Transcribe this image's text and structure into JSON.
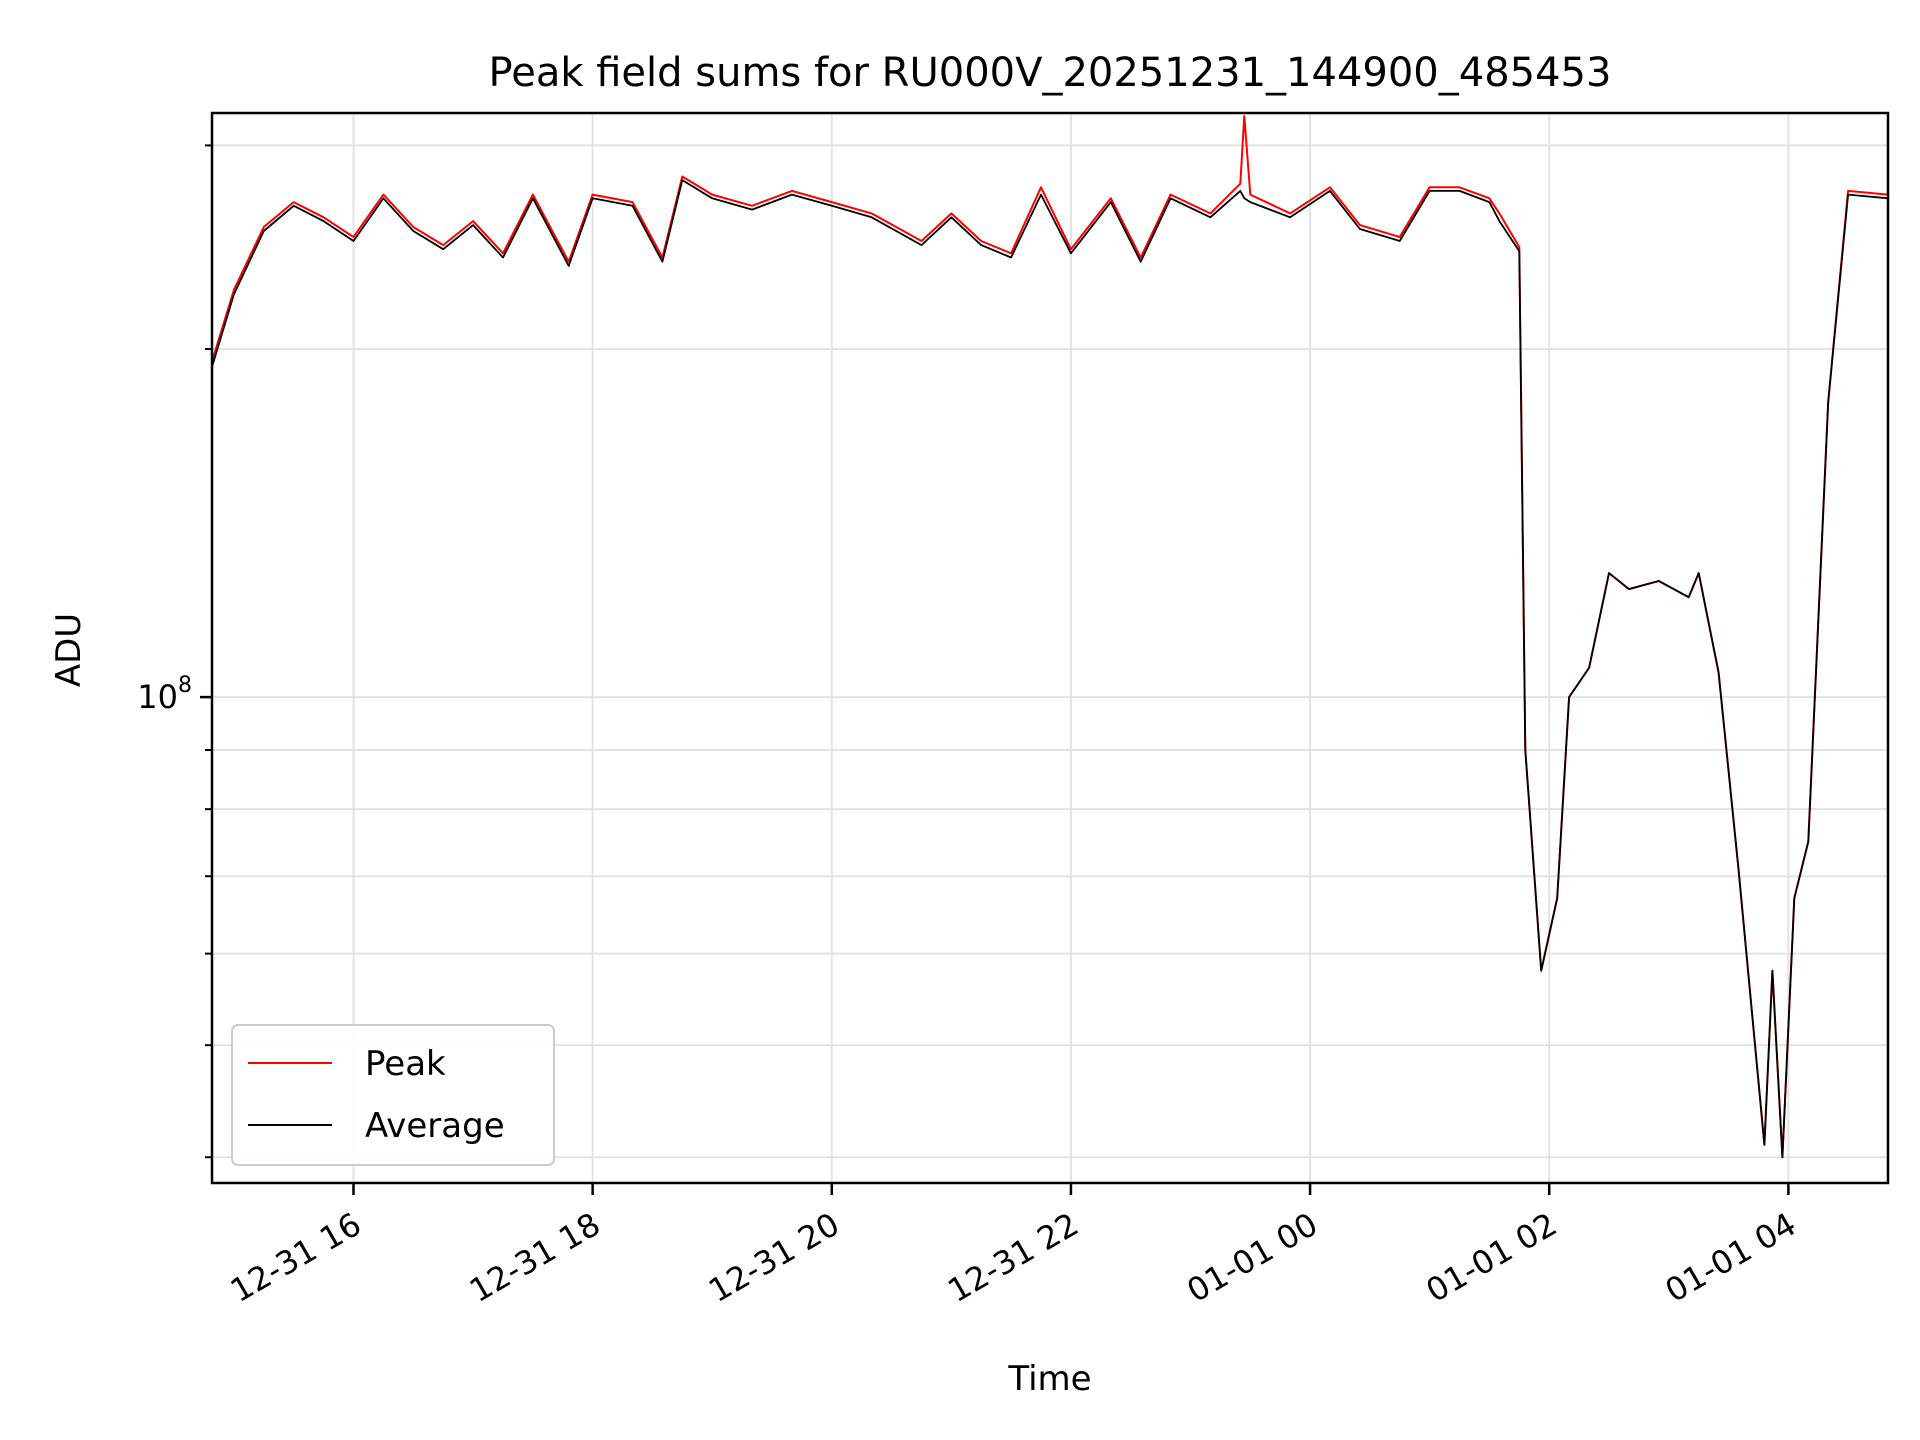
{
  "chart_data": {
    "type": "line",
    "title": "Peak field sums for RU000V_20251231_144900_485453",
    "xlabel": "Time",
    "ylabel": "ADU",
    "y_scale": "log",
    "ylim": [
      38000000,
      320000000
    ],
    "xlim": [
      "12-31 14:49",
      "01-01 04:50"
    ],
    "grid": true,
    "legend_position": "lower-left",
    "x_ticks": [
      {
        "t": "12-31 16:00",
        "label": "12-31 16"
      },
      {
        "t": "12-31 18:00",
        "label": "12-31 18"
      },
      {
        "t": "12-31 20:00",
        "label": "12-31 20"
      },
      {
        "t": "12-31 22:00",
        "label": "12-31 22"
      },
      {
        "t": "01-01 00:00",
        "label": "01-01 00"
      },
      {
        "t": "01-01 02:00",
        "label": "01-01 02"
      },
      {
        "t": "01-01 04:00",
        "label": "01-01 04"
      }
    ],
    "y_major_tick": {
      "value": 100000000,
      "base": "10",
      "exponent": "8"
    },
    "y_minor_ticks": [
      40000000,
      50000000,
      60000000,
      70000000,
      80000000,
      90000000,
      200000000,
      300000000
    ],
    "series": [
      {
        "name": "Peak",
        "color": "#ff0000",
        "points": [
          [
            "12-31 14:49",
            195000000
          ],
          [
            "12-31 15:00",
            225000000
          ],
          [
            "12-31 15:15",
            255000000
          ],
          [
            "12-31 15:30",
            268000000
          ],
          [
            "12-31 15:45",
            260000000
          ],
          [
            "12-31 16:00",
            250000000
          ],
          [
            "12-31 16:15",
            272000000
          ],
          [
            "12-31 16:30",
            255000000
          ],
          [
            "12-31 16:45",
            246000000
          ],
          [
            "12-31 17:00",
            258000000
          ],
          [
            "12-31 17:15",
            242000000
          ],
          [
            "12-31 17:30",
            272000000
          ],
          [
            "12-31 17:48",
            238000000
          ],
          [
            "12-31 18:00",
            272000000
          ],
          [
            "12-31 18:20",
            268000000
          ],
          [
            "12-31 18:35",
            240000000
          ],
          [
            "12-31 18:45",
            282000000
          ],
          [
            "12-31 19:00",
            272000000
          ],
          [
            "12-31 19:20",
            266000000
          ],
          [
            "12-31 19:40",
            274000000
          ],
          [
            "12-31 20:00",
            268000000
          ],
          [
            "12-31 20:20",
            262000000
          ],
          [
            "12-31 20:45",
            248000000
          ],
          [
            "12-31 21:00",
            262000000
          ],
          [
            "12-31 21:15",
            248000000
          ],
          [
            "12-31 21:30",
            242000000
          ],
          [
            "12-31 21:45",
            276000000
          ],
          [
            "12-31 22:00",
            244000000
          ],
          [
            "12-31 22:20",
            270000000
          ],
          [
            "12-31 22:35",
            240000000
          ],
          [
            "12-31 22:50",
            272000000
          ],
          [
            "12-31 23:10",
            262000000
          ],
          [
            "12-31 23:25",
            278000000
          ],
          [
            "12-31 23:27",
            318000000
          ],
          [
            "12-31 23:30",
            272000000
          ],
          [
            "12-31 23:50",
            262000000
          ],
          [
            "01-01 00:10",
            276000000
          ],
          [
            "01-01 00:25",
            256000000
          ],
          [
            "01-01 00:45",
            250000000
          ],
          [
            "01-01 01:00",
            276000000
          ],
          [
            "01-01 01:15",
            276000000
          ],
          [
            "01-01 01:30",
            270000000
          ],
          [
            "01-01 01:35",
            262000000
          ],
          [
            "01-01 01:45",
            245000000
          ],
          [
            "01-01 01:48",
            90000000
          ],
          [
            "01-01 01:56",
            58000000
          ],
          [
            "01-01 02:04",
            67000000
          ],
          [
            "01-01 02:10",
            100000000
          ],
          [
            "01-01 02:20",
            106000000
          ],
          [
            "01-01 02:30",
            128000000
          ],
          [
            "01-01 02:40",
            124000000
          ],
          [
            "01-01 02:55",
            126000000
          ],
          [
            "01-01 03:10",
            122000000
          ],
          [
            "01-01 03:15",
            128000000
          ],
          [
            "01-01 03:25",
            105000000
          ],
          [
            "01-01 03:35",
            71000000
          ],
          [
            "01-01 03:48",
            41000000
          ],
          [
            "01-01 03:52",
            58000000
          ],
          [
            "01-01 03:57",
            40000000
          ],
          [
            "01-01 04:03",
            67000000
          ],
          [
            "01-01 04:10",
            75000000
          ],
          [
            "01-01 04:20",
            180000000
          ],
          [
            "01-01 04:30",
            274000000
          ],
          [
            "01-01 04:50",
            272000000
          ]
        ]
      },
      {
        "name": "Average",
        "color": "#000000",
        "points": [
          [
            "12-31 14:49",
            193000000
          ],
          [
            "12-31 15:00",
            223000000
          ],
          [
            "12-31 15:15",
            253000000
          ],
          [
            "12-31 15:30",
            266000000
          ],
          [
            "12-31 15:45",
            258000000
          ],
          [
            "12-31 16:00",
            248000000
          ],
          [
            "12-31 16:15",
            270000000
          ],
          [
            "12-31 16:30",
            253000000
          ],
          [
            "12-31 16:45",
            244000000
          ],
          [
            "12-31 17:00",
            256000000
          ],
          [
            "12-31 17:15",
            240000000
          ],
          [
            "12-31 17:30",
            270000000
          ],
          [
            "12-31 17:48",
            236000000
          ],
          [
            "12-31 18:00",
            270000000
          ],
          [
            "12-31 18:20",
            266000000
          ],
          [
            "12-31 18:35",
            238000000
          ],
          [
            "12-31 18:45",
            280000000
          ],
          [
            "12-31 19:00",
            270000000
          ],
          [
            "12-31 19:20",
            264000000
          ],
          [
            "12-31 19:40",
            272000000
          ],
          [
            "12-31 20:00",
            266000000
          ],
          [
            "12-31 20:20",
            260000000
          ],
          [
            "12-31 20:45",
            246000000
          ],
          [
            "12-31 21:00",
            260000000
          ],
          [
            "12-31 21:15",
            246000000
          ],
          [
            "12-31 21:30",
            240000000
          ],
          [
            "12-31 21:45",
            272000000
          ],
          [
            "12-31 22:00",
            242000000
          ],
          [
            "12-31 22:20",
            268000000
          ],
          [
            "12-31 22:35",
            238000000
          ],
          [
            "12-31 22:50",
            270000000
          ],
          [
            "12-31 23:10",
            260000000
          ],
          [
            "12-31 23:25",
            274000000
          ],
          [
            "12-31 23:27",
            270000000
          ],
          [
            "12-31 23:30",
            268000000
          ],
          [
            "12-31 23:50",
            260000000
          ],
          [
            "01-01 00:10",
            274000000
          ],
          [
            "01-01 00:25",
            254000000
          ],
          [
            "01-01 00:45",
            248000000
          ],
          [
            "01-01 01:00",
            274000000
          ],
          [
            "01-01 01:15",
            274000000
          ],
          [
            "01-01 01:30",
            268000000
          ],
          [
            "01-01 01:35",
            258000000
          ],
          [
            "01-01 01:45",
            243000000
          ],
          [
            "01-01 01:48",
            90000000
          ],
          [
            "01-01 01:56",
            58000000
          ],
          [
            "01-01 02:04",
            67000000
          ],
          [
            "01-01 02:10",
            100000000
          ],
          [
            "01-01 02:20",
            106000000
          ],
          [
            "01-01 02:30",
            128000000
          ],
          [
            "01-01 02:40",
            124000000
          ],
          [
            "01-01 02:55",
            126000000
          ],
          [
            "01-01 03:10",
            122000000
          ],
          [
            "01-01 03:15",
            128000000
          ],
          [
            "01-01 03:25",
            105000000
          ],
          [
            "01-01 03:35",
            71000000
          ],
          [
            "01-01 03:48",
            41000000
          ],
          [
            "01-01 03:52",
            58000000
          ],
          [
            "01-01 03:57",
            40000000
          ],
          [
            "01-01 04:03",
            67000000
          ],
          [
            "01-01 04:10",
            75000000
          ],
          [
            "01-01 04:20",
            180000000
          ],
          [
            "01-01 04:30",
            272000000
          ],
          [
            "01-01 04:50",
            270000000
          ]
        ]
      }
    ]
  }
}
